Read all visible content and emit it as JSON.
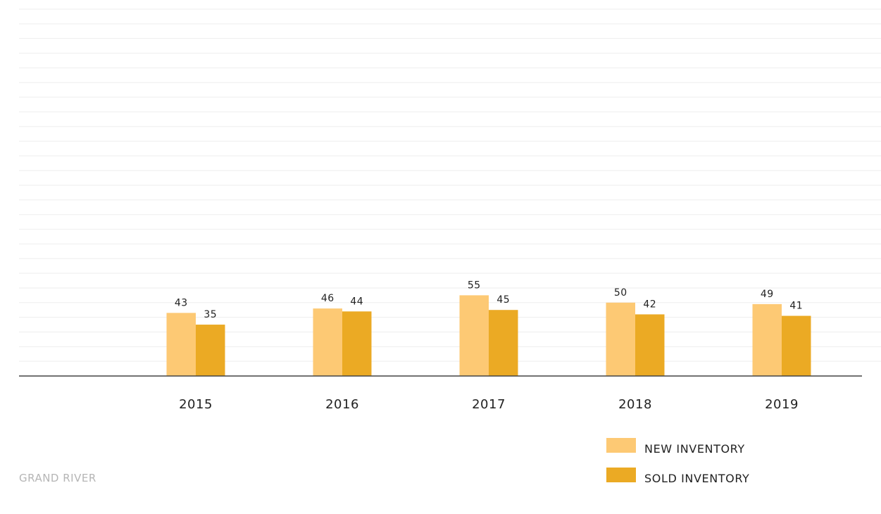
{
  "chart_data": {
    "type": "bar",
    "categories": [
      "2015",
      "2016",
      "2017",
      "2018",
      "2019"
    ],
    "series": [
      {
        "name": "NEW INVENTORY",
        "values": [
          43,
          46,
          55,
          50,
          49
        ],
        "color": "#fdc974"
      },
      {
        "name": "SOLD INVENTORY",
        "values": [
          35,
          44,
          45,
          42,
          41
        ],
        "color": "#ebaa24"
      }
    ],
    "title": "",
    "xlabel": "",
    "ylabel": "",
    "ylim": [
      0,
      250
    ],
    "grid": true,
    "legend_position": "bottom-right"
  },
  "footer": {
    "label": "GRAND RIVER"
  },
  "colors": {
    "axis": "#444444",
    "grid": "#eeeeee"
  }
}
